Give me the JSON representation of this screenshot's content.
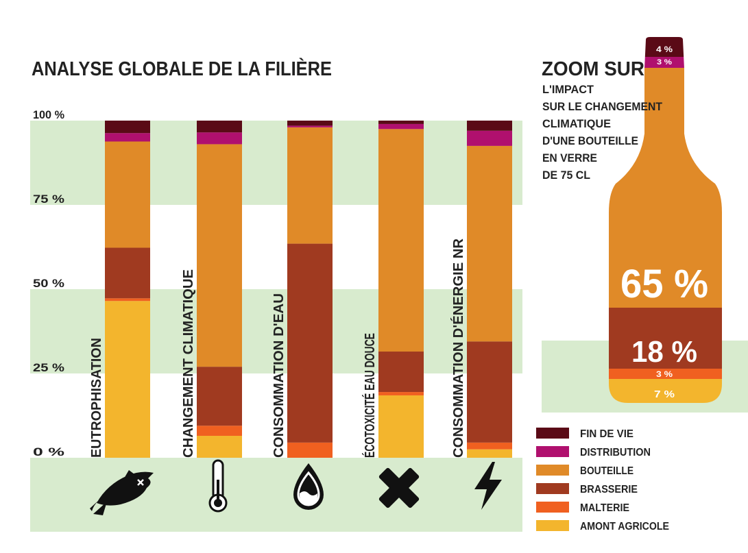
{
  "left_title": "ANALYSE GLOBALE DE LA FILIÈRE",
  "y_ticks": [
    "100 %",
    "75 %",
    "50 %",
    "25 %",
    "0 %"
  ],
  "bar_labels": [
    "EUTROPHISATION",
    "CHANGEMENT CLIMATIQUE",
    "CONSOMMATION D'EAU",
    "ÉCOTOXICITÉ  EAU DOUCE",
    "CONSOMMATION D'ÉNERGIE NR"
  ],
  "icons": [
    "fish-icon",
    "thermometer-icon",
    "water-drop-icon",
    "cross-icon",
    "lightning-icon"
  ],
  "zoom": {
    "title": "ZOOM SUR",
    "subtitle_lines": [
      "L'IMPACT",
      "SUR LE CHANGEMENT",
      "CLIMATIQUE",
      "D'UNE BOUTEILLE",
      "EN VERRE",
      "DE 75 CL"
    ],
    "values": [
      {
        "label": "4 %",
        "value": 4
      },
      {
        "label": "3 %",
        "value": 3
      },
      {
        "label": "65 %",
        "value": 65
      },
      {
        "label": "18 %",
        "value": 18
      },
      {
        "label": "3 %",
        "value": 3
      },
      {
        "label": "7 %",
        "value": 7
      }
    ]
  },
  "legend": [
    {
      "label": "FIN DE VIE",
      "color": "#5a0a16"
    },
    {
      "label": "DISTRIBUTION",
      "color": "#b0106e"
    },
    {
      "label": "BOUTEILLE",
      "color": "#e08a28"
    },
    {
      "label": "BRASSERIE",
      "color": "#a03a20"
    },
    {
      "label": "MALTERIE",
      "color": "#f06020"
    },
    {
      "label": "AMONT AGRICOLE",
      "color": "#f3b52d"
    }
  ],
  "colors": {
    "band": "#d8ebce",
    "text": "#222222",
    "fin_de_vie": "#5a0a16",
    "distribution": "#b0106e",
    "bouteille": "#e08a28",
    "brasserie": "#a03a20",
    "malterie": "#f06020",
    "amont_agricole": "#f3b52d"
  },
  "chart_data": [
    {
      "type": "bar",
      "stacked": true,
      "title": "ANALYSE GLOBALE DE LA FILIÈRE",
      "categories": [
        "EUTROPHISATION",
        "CHANGEMENT CLIMATIQUE",
        "CONSOMMATION D'EAU",
        "ÉCOTOXICITÉ  EAU DOUCE",
        "CONSOMMATION D'ÉNERGIE NR"
      ],
      "ylim": [
        0,
        100
      ],
      "yticks": [
        "0 %",
        "25 %",
        "50 %",
        "75 %",
        "100 %"
      ],
      "series": [
        {
          "name": "AMONT AGRICOLE",
          "values": [
            46.5,
            6.5,
            0,
            18.5,
            2.5
          ]
        },
        {
          "name": "MALTERIE",
          "values": [
            0.8,
            3,
            4.5,
            1,
            2
          ]
        },
        {
          "name": "BRASSERIE",
          "values": [
            15,
            17.5,
            59,
            12,
            30
          ]
        },
        {
          "name": "BOUTEILLE",
          "values": [
            31.5,
            66,
            34.5,
            66,
            58
          ]
        },
        {
          "name": "DISTRIBUTION",
          "values": [
            2.5,
            3.5,
            0.5,
            1.5,
            4.5
          ]
        },
        {
          "name": "FIN DE VIE",
          "values": [
            3.7,
            3.5,
            1.5,
            1,
            3
          ]
        }
      ]
    },
    {
      "type": "bar",
      "stacked": true,
      "title": "ZOOM SUR",
      "categories": [
        "BOUTEILLE EN VERRE 75 CL"
      ],
      "series": [
        {
          "name": "FIN DE VIE",
          "values": [
            4
          ]
        },
        {
          "name": "DISTRIBUTION",
          "values": [
            3
          ]
        },
        {
          "name": "BOUTEILLE",
          "values": [
            65
          ]
        },
        {
          "name": "BRASSERIE",
          "values": [
            18
          ]
        },
        {
          "name": "MALTERIE",
          "values": [
            3
          ]
        },
        {
          "name": "AMONT AGRICOLE",
          "values": [
            7
          ]
        }
      ]
    }
  ]
}
